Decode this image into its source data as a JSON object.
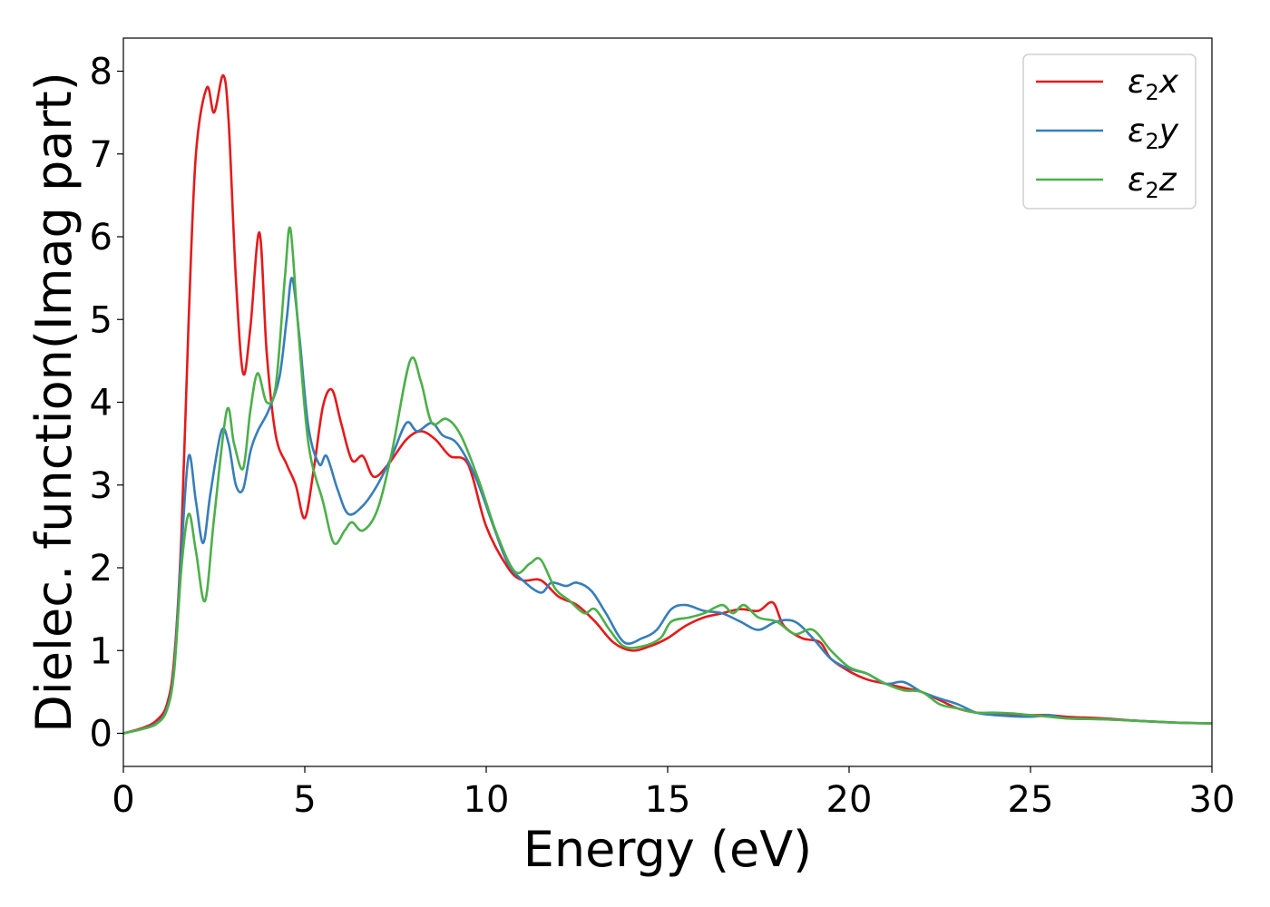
{
  "chart_data": {
    "type": "line",
    "xlabel": "Energy (eV)",
    "ylabel": "Dielec. function(Imag part)",
    "xlim": [
      0,
      30
    ],
    "ylim": [
      -0.4,
      8.4
    ],
    "xticks": [
      "0",
      "5",
      "10",
      "15",
      "20",
      "25",
      "30"
    ],
    "yticks": [
      "0",
      "1",
      "2",
      "3",
      "4",
      "5",
      "6",
      "7",
      "8"
    ],
    "grid": false,
    "legend_position": "top-right",
    "series": [
      {
        "name": "ε₂x",
        "legend_main": "ε",
        "legend_sub": "2",
        "legend_suffix": "x",
        "color": "#e41a1c",
        "points": [
          [
            0,
            0
          ],
          [
            0.5,
            0.06
          ],
          [
            0.9,
            0.15
          ],
          [
            1.2,
            0.35
          ],
          [
            1.4,
            0.9
          ],
          [
            1.6,
            2.4
          ],
          [
            1.8,
            5.0
          ],
          [
            2.0,
            7.0
          ],
          [
            2.3,
            7.8
          ],
          [
            2.5,
            7.5
          ],
          [
            2.75,
            7.95
          ],
          [
            2.9,
            7.4
          ],
          [
            3.1,
            5.5
          ],
          [
            3.3,
            4.35
          ],
          [
            3.5,
            4.9
          ],
          [
            3.75,
            6.05
          ],
          [
            3.95,
            4.6
          ],
          [
            4.2,
            3.6
          ],
          [
            4.5,
            3.25
          ],
          [
            4.75,
            3.0
          ],
          [
            5.0,
            2.6
          ],
          [
            5.25,
            3.2
          ],
          [
            5.5,
            3.95
          ],
          [
            5.75,
            4.15
          ],
          [
            6.0,
            3.75
          ],
          [
            6.3,
            3.3
          ],
          [
            6.6,
            3.35
          ],
          [
            6.9,
            3.1
          ],
          [
            7.3,
            3.25
          ],
          [
            7.8,
            3.55
          ],
          [
            8.2,
            3.65
          ],
          [
            8.6,
            3.55
          ],
          [
            9.0,
            3.35
          ],
          [
            9.5,
            3.25
          ],
          [
            10.0,
            2.5
          ],
          [
            10.6,
            2.0
          ],
          [
            11.0,
            1.85
          ],
          [
            11.5,
            1.85
          ],
          [
            12.0,
            1.65
          ],
          [
            12.5,
            1.55
          ],
          [
            13.0,
            1.35
          ],
          [
            13.5,
            1.1
          ],
          [
            14.0,
            1.0
          ],
          [
            14.5,
            1.05
          ],
          [
            15.0,
            1.15
          ],
          [
            15.5,
            1.3
          ],
          [
            16.0,
            1.4
          ],
          [
            16.5,
            1.45
          ],
          [
            17.0,
            1.5
          ],
          [
            17.5,
            1.48
          ],
          [
            17.9,
            1.58
          ],
          [
            18.2,
            1.3
          ],
          [
            18.7,
            1.15
          ],
          [
            19.2,
            1.1
          ],
          [
            19.5,
            0.9
          ],
          [
            20.0,
            0.75
          ],
          [
            20.5,
            0.65
          ],
          [
            21.0,
            0.6
          ],
          [
            21.5,
            0.55
          ],
          [
            22.0,
            0.5
          ],
          [
            22.5,
            0.4
          ],
          [
            23.0,
            0.3
          ],
          [
            23.5,
            0.25
          ],
          [
            24.0,
            0.24
          ],
          [
            24.5,
            0.23
          ],
          [
            25.0,
            0.22
          ],
          [
            25.5,
            0.22
          ],
          [
            26.0,
            0.2
          ],
          [
            27.0,
            0.18
          ],
          [
            28.0,
            0.15
          ],
          [
            29.0,
            0.13
          ],
          [
            30.0,
            0.12
          ]
        ]
      },
      {
        "name": "ε₂y",
        "legend_main": "ε",
        "legend_sub": "2",
        "legend_suffix": "y",
        "color": "#377eb8",
        "points": [
          [
            0,
            0
          ],
          [
            0.5,
            0.05
          ],
          [
            0.9,
            0.12
          ],
          [
            1.2,
            0.3
          ],
          [
            1.4,
            0.8
          ],
          [
            1.6,
            2.2
          ],
          [
            1.8,
            3.35
          ],
          [
            2.0,
            2.8
          ],
          [
            2.2,
            2.3
          ],
          [
            2.4,
            2.9
          ],
          [
            2.7,
            3.65
          ],
          [
            2.9,
            3.5
          ],
          [
            3.1,
            3.0
          ],
          [
            3.3,
            2.95
          ],
          [
            3.5,
            3.4
          ],
          [
            3.7,
            3.65
          ],
          [
            4.0,
            3.9
          ],
          [
            4.3,
            4.3
          ],
          [
            4.5,
            5.0
          ],
          [
            4.65,
            5.5
          ],
          [
            4.85,
            4.8
          ],
          [
            5.1,
            3.7
          ],
          [
            5.4,
            3.25
          ],
          [
            5.6,
            3.35
          ],
          [
            5.9,
            2.95
          ],
          [
            6.2,
            2.65
          ],
          [
            6.6,
            2.75
          ],
          [
            7.0,
            3.0
          ],
          [
            7.4,
            3.35
          ],
          [
            7.8,
            3.75
          ],
          [
            8.1,
            3.65
          ],
          [
            8.5,
            3.75
          ],
          [
            8.8,
            3.6
          ],
          [
            9.2,
            3.5
          ],
          [
            9.7,
            3.1
          ],
          [
            10.2,
            2.5
          ],
          [
            10.6,
            2.05
          ],
          [
            11.0,
            1.85
          ],
          [
            11.5,
            1.7
          ],
          [
            11.8,
            1.82
          ],
          [
            12.2,
            1.78
          ],
          [
            12.5,
            1.82
          ],
          [
            12.9,
            1.72
          ],
          [
            13.3,
            1.45
          ],
          [
            13.8,
            1.1
          ],
          [
            14.3,
            1.15
          ],
          [
            14.7,
            1.25
          ],
          [
            15.1,
            1.5
          ],
          [
            15.5,
            1.55
          ],
          [
            16.0,
            1.48
          ],
          [
            16.5,
            1.45
          ],
          [
            17.0,
            1.35
          ],
          [
            17.5,
            1.25
          ],
          [
            18.0,
            1.35
          ],
          [
            18.5,
            1.35
          ],
          [
            19.0,
            1.15
          ],
          [
            19.5,
            0.9
          ],
          [
            20.0,
            0.78
          ],
          [
            20.5,
            0.72
          ],
          [
            21.0,
            0.6
          ],
          [
            21.5,
            0.62
          ],
          [
            22.0,
            0.5
          ],
          [
            22.5,
            0.42
          ],
          [
            23.0,
            0.35
          ],
          [
            23.5,
            0.25
          ],
          [
            24.0,
            0.22
          ],
          [
            25.0,
            0.2
          ],
          [
            25.5,
            0.22
          ],
          [
            26.0,
            0.18
          ],
          [
            27.0,
            0.17
          ],
          [
            28.0,
            0.15
          ],
          [
            29.0,
            0.13
          ],
          [
            30.0,
            0.12
          ]
        ]
      },
      {
        "name": "ε₂z",
        "legend_main": "ε",
        "legend_sub": "2",
        "legend_suffix": "z",
        "color": "#4daf4a",
        "points": [
          [
            0,
            0
          ],
          [
            0.5,
            0.05
          ],
          [
            0.9,
            0.11
          ],
          [
            1.2,
            0.28
          ],
          [
            1.4,
            0.75
          ],
          [
            1.6,
            2.0
          ],
          [
            1.8,
            2.65
          ],
          [
            2.0,
            2.2
          ],
          [
            2.25,
            1.6
          ],
          [
            2.5,
            2.6
          ],
          [
            2.85,
            3.9
          ],
          [
            3.05,
            3.5
          ],
          [
            3.3,
            3.2
          ],
          [
            3.5,
            3.9
          ],
          [
            3.7,
            4.35
          ],
          [
            3.95,
            4.0
          ],
          [
            4.2,
            4.2
          ],
          [
            4.45,
            5.5
          ],
          [
            4.6,
            6.1
          ],
          [
            4.8,
            5.0
          ],
          [
            5.1,
            3.5
          ],
          [
            5.5,
            2.8
          ],
          [
            5.8,
            2.3
          ],
          [
            6.1,
            2.45
          ],
          [
            6.3,
            2.55
          ],
          [
            6.6,
            2.45
          ],
          [
            7.0,
            2.7
          ],
          [
            7.4,
            3.4
          ],
          [
            7.9,
            4.5
          ],
          [
            8.2,
            4.25
          ],
          [
            8.5,
            3.75
          ],
          [
            8.9,
            3.8
          ],
          [
            9.3,
            3.6
          ],
          [
            9.8,
            3.05
          ],
          [
            10.3,
            2.4
          ],
          [
            10.8,
            1.95
          ],
          [
            11.2,
            2.05
          ],
          [
            11.5,
            2.1
          ],
          [
            11.9,
            1.75
          ],
          [
            12.3,
            1.6
          ],
          [
            12.7,
            1.45
          ],
          [
            13.0,
            1.5
          ],
          [
            13.4,
            1.25
          ],
          [
            13.8,
            1.05
          ],
          [
            14.3,
            1.05
          ],
          [
            14.8,
            1.15
          ],
          [
            15.1,
            1.35
          ],
          [
            15.6,
            1.4
          ],
          [
            16.0,
            1.45
          ],
          [
            16.5,
            1.55
          ],
          [
            16.8,
            1.45
          ],
          [
            17.1,
            1.55
          ],
          [
            17.5,
            1.4
          ],
          [
            18.0,
            1.35
          ],
          [
            18.5,
            1.2
          ],
          [
            19.0,
            1.25
          ],
          [
            19.5,
            1.0
          ],
          [
            20.0,
            0.8
          ],
          [
            20.5,
            0.72
          ],
          [
            21.0,
            0.6
          ],
          [
            21.5,
            0.52
          ],
          [
            22.0,
            0.5
          ],
          [
            22.5,
            0.35
          ],
          [
            23.0,
            0.3
          ],
          [
            23.5,
            0.25
          ],
          [
            24.0,
            0.25
          ],
          [
            24.5,
            0.24
          ],
          [
            25.0,
            0.22
          ],
          [
            25.5,
            0.2
          ],
          [
            26.0,
            0.18
          ],
          [
            27.0,
            0.17
          ],
          [
            28.0,
            0.15
          ],
          [
            29.0,
            0.13
          ],
          [
            30.0,
            0.12
          ]
        ]
      }
    ]
  }
}
